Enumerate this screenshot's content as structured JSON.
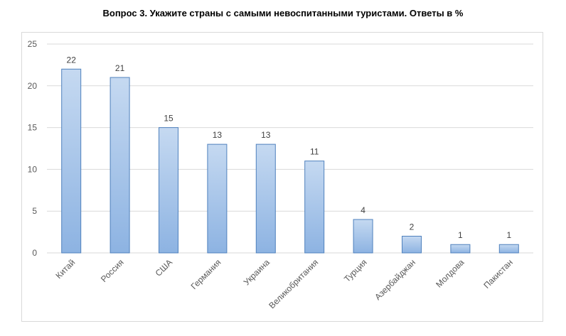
{
  "chart_data": {
    "type": "bar",
    "title": "Вопрос 3. Укажите страны с самыми невоспитанными туристами. Ответы в %",
    "categories": [
      "Китай",
      "Россия",
      "США",
      "Германия",
      "Украина",
      "Великобритания",
      "Турция",
      "Азербайджан",
      "Молдова",
      "Пакистан"
    ],
    "values": [
      22,
      21,
      15,
      13,
      13,
      11,
      4,
      2,
      1,
      1
    ],
    "ylim": [
      0,
      25
    ],
    "yticks": [
      "0",
      "5",
      "10",
      "15",
      "20",
      "25"
    ],
    "grid": true,
    "xlabel": "",
    "ylabel": "",
    "colors": {
      "bar_top": "#c5d9f1",
      "bar_bottom": "#8db3e2",
      "bar_border": "#4f81bd",
      "grid": "#d9d9d9"
    }
  }
}
